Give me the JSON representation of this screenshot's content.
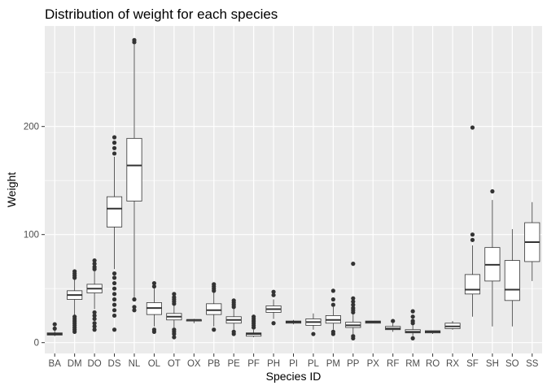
{
  "chart_data": {
    "type": "box",
    "title": "Distribution of weight for each species",
    "xlabel": "Species ID",
    "ylabel": "Weight",
    "ylim": [
      -10,
      293
    ],
    "yticks": [
      0,
      100,
      200
    ],
    "grid": true,
    "legend": "none",
    "categories": [
      "BA",
      "DM",
      "DO",
      "DS",
      "NL",
      "OL",
      "OT",
      "OX",
      "PB",
      "PE",
      "PF",
      "PH",
      "PI",
      "PL",
      "PM",
      "PP",
      "PX",
      "RF",
      "RM",
      "RO",
      "RX",
      "SF",
      "SH",
      "SO",
      "SS"
    ],
    "series": [
      {
        "category": "BA",
        "min": 6,
        "q1": 7,
        "median": 8,
        "q3": 9,
        "max": 12,
        "outliers": [
          13,
          17
        ]
      },
      {
        "category": "DM",
        "min": 25,
        "q1": 40,
        "median": 44,
        "q3": 48,
        "max": 59,
        "outliers": [
          10,
          12,
          14,
          16,
          18,
          20,
          22,
          24,
          60,
          62,
          64,
          66
        ]
      },
      {
        "category": "DO",
        "min": 31,
        "q1": 46,
        "median": 50,
        "q3": 54,
        "max": 66,
        "outliers": [
          12,
          15,
          18,
          22,
          25,
          28,
          68,
          70,
          73,
          76
        ]
      },
      {
        "category": "DS",
        "min": 68,
        "q1": 107,
        "median": 124,
        "q3": 135,
        "max": 172,
        "outliers": [
          12,
          25,
          30,
          35,
          40,
          45,
          50,
          55,
          60,
          64,
          175,
          180,
          185,
          190
        ]
      },
      {
        "category": "NL",
        "min": 42,
        "q1": 131,
        "median": 164,
        "q3": 189,
        "max": 276,
        "outliers": [
          30,
          33,
          40,
          278,
          280
        ]
      },
      {
        "category": "OL",
        "min": 15,
        "q1": 26,
        "median": 32,
        "q3": 37,
        "max": 50,
        "outliers": [
          10,
          12,
          52,
          55
        ]
      },
      {
        "category": "OT",
        "min": 14,
        "q1": 21,
        "median": 24,
        "q3": 27,
        "max": 35,
        "outliers": [
          5,
          8,
          10,
          12,
          36,
          38,
          40,
          42,
          45
        ]
      },
      {
        "category": "OX",
        "min": 18,
        "q1": 20,
        "median": 21,
        "q3": 21,
        "max": 22,
        "outliers": []
      },
      {
        "category": "PB",
        "min": 15,
        "q1": 26,
        "median": 30,
        "q3": 36,
        "max": 46,
        "outliers": [
          12,
          48,
          50,
          52,
          54
        ]
      },
      {
        "category": "PE",
        "min": 12,
        "q1": 18,
        "median": 21,
        "q3": 24,
        "max": 31,
        "outliers": [
          8,
          10,
          33,
          35,
          37,
          39
        ]
      },
      {
        "category": "PF",
        "min": 5,
        "q1": 6,
        "median": 8,
        "q3": 9,
        "max": 12,
        "outliers": [
          14,
          16,
          18,
          20,
          22,
          24
        ]
      },
      {
        "category": "PH",
        "min": 22,
        "q1": 28,
        "median": 31,
        "q3": 34,
        "max": 40,
        "outliers": [
          18,
          44,
          47
        ]
      },
      {
        "category": "PI",
        "min": 17,
        "q1": 18,
        "median": 19,
        "q3": 20,
        "max": 21,
        "outliers": []
      },
      {
        "category": "PL",
        "min": 12,
        "q1": 16,
        "median": 19,
        "q3": 22,
        "max": 27,
        "outliers": [
          8
        ]
      },
      {
        "category": "PM",
        "min": 12,
        "q1": 18,
        "median": 21,
        "q3": 25,
        "max": 33,
        "outliers": [
          8,
          10,
          35,
          40,
          48
        ]
      },
      {
        "category": "PP",
        "min": 8,
        "q1": 14,
        "median": 16,
        "q3": 19,
        "max": 26,
        "outliers": [
          4,
          6,
          28,
          30,
          32,
          35,
          38,
          41,
          73
        ]
      },
      {
        "category": "PX",
        "min": 18,
        "q1": 18,
        "median": 19,
        "q3": 20,
        "max": 20,
        "outliers": []
      },
      {
        "category": "RF",
        "min": 10,
        "q1": 12,
        "median": 13,
        "q3": 15,
        "max": 18,
        "outliers": [
          20
        ]
      },
      {
        "category": "RM",
        "min": 6,
        "q1": 9,
        "median": 10,
        "q3": 12,
        "max": 16,
        "outliers": [
          4,
          18,
          20,
          24,
          29
        ]
      },
      {
        "category": "RO",
        "min": 8,
        "q1": 9,
        "median": 10,
        "q3": 11,
        "max": 11,
        "outliers": []
      },
      {
        "category": "RX",
        "min": 12,
        "q1": 13,
        "median": 15,
        "q3": 18,
        "max": 20,
        "outliers": []
      },
      {
        "category": "SF",
        "min": 24,
        "q1": 45,
        "median": 49,
        "q3": 63,
        "max": 90,
        "outliers": [
          95,
          100,
          199
        ]
      },
      {
        "category": "SH",
        "min": 15,
        "q1": 57,
        "median": 72,
        "q3": 88,
        "max": 132,
        "outliers": [
          140
        ]
      },
      {
        "category": "SO",
        "min": 15,
        "q1": 39,
        "median": 49,
        "q3": 76,
        "max": 105,
        "outliers": []
      },
      {
        "category": "SS",
        "min": 57,
        "q1": 75,
        "median": 93,
        "q3": 111,
        "max": 130,
        "outliers": []
      }
    ]
  }
}
